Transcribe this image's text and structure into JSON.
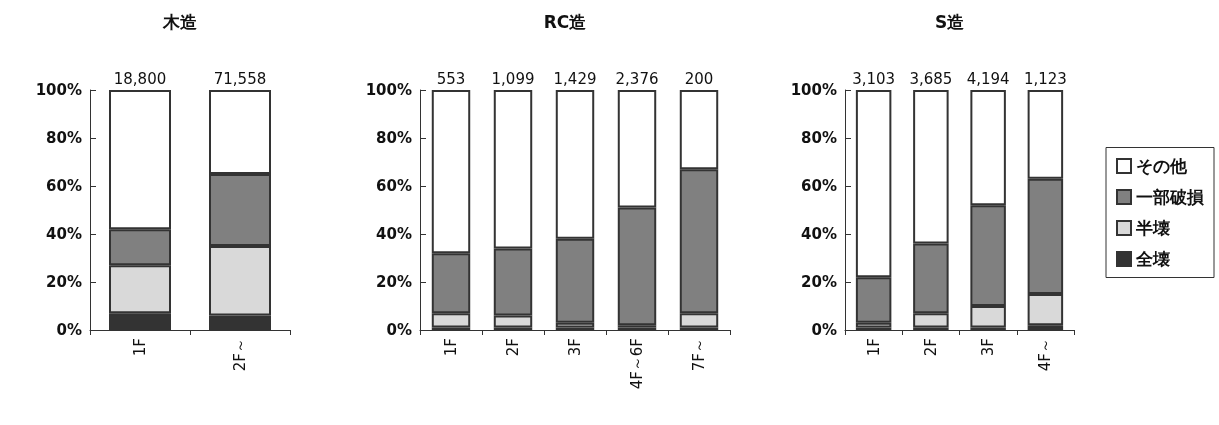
{
  "chart_data": [
    {
      "type": "bar",
      "title": "木造",
      "stacked": true,
      "categories": [
        "1F",
        "2F～"
      ],
      "ylim": [
        0,
        100
      ],
      "yticks": [
        {
          "value": 0,
          "label": "0%"
        },
        {
          "value": 20,
          "label": "20%"
        },
        {
          "value": 40,
          "label": "40%"
        },
        {
          "value": 60,
          "label": "60%"
        },
        {
          "value": 80,
          "label": "80%"
        },
        {
          "value": 100,
          "label": "100%"
        }
      ],
      "grid": false,
      "legend": false,
      "annotations": [
        {
          "text": "18,800",
          "x": "1F",
          "y": 100
        },
        {
          "text": "71,558",
          "x": "2F～",
          "y": 100
        }
      ],
      "series": [
        {
          "color": "#333333",
          "values": [
            7,
            6
          ]
        },
        {
          "color": "#d9d9d9",
          "values": [
            20,
            29
          ]
        },
        {
          "color": "#808080",
          "values": [
            15,
            30
          ]
        },
        {
          "color": "#ffffff",
          "values": [
            58,
            35
          ]
        }
      ]
    },
    {
      "type": "bar",
      "title": "RC造",
      "stacked": true,
      "categories": [
        "1F",
        "2F",
        "3F",
        "4F～6F",
        "7F～"
      ],
      "ylim": [
        0,
        100
      ],
      "yticks": [
        {
          "value": 0,
          "label": "0%"
        },
        {
          "value": 20,
          "label": "20%"
        },
        {
          "value": 40,
          "label": "40%"
        },
        {
          "value": 60,
          "label": "60%"
        },
        {
          "value": 80,
          "label": "80%"
        },
        {
          "value": 100,
          "label": "100%"
        }
      ],
      "grid": false,
      "legend": false,
      "annotations": [
        {
          "text": "553",
          "x": "1F",
          "y": 100
        },
        {
          "text": "1,099",
          "x": "2F",
          "y": 100
        },
        {
          "text": "1,429",
          "x": "3F",
          "y": 100
        },
        {
          "text": "2,376",
          "x": "4F～6F",
          "y": 100
        },
        {
          "text": "200",
          "x": "7F～",
          "y": 100
        }
      ],
      "series": [
        {
          "color": "#333333",
          "values": [
            1,
            1,
            1,
            1,
            1
          ]
        },
        {
          "color": "#d9d9d9",
          "values": [
            6,
            5,
            2,
            1,
            6
          ]
        },
        {
          "color": "#808080",
          "values": [
            25,
            28,
            35,
            49,
            60
          ]
        },
        {
          "color": "#ffffff",
          "values": [
            68,
            66,
            62,
            49,
            33
          ]
        }
      ]
    },
    {
      "type": "bar",
      "title": "S造",
      "stacked": true,
      "categories": [
        "1F",
        "2F",
        "3F",
        "4F～"
      ],
      "ylim": [
        0,
        100
      ],
      "yticks": [
        {
          "value": 0,
          "label": "0%"
        },
        {
          "value": 20,
          "label": "20%"
        },
        {
          "value": 40,
          "label": "40%"
        },
        {
          "value": 60,
          "label": "60%"
        },
        {
          "value": 80,
          "label": "80%"
        },
        {
          "value": 100,
          "label": "100%"
        }
      ],
      "grid": false,
      "legend": "right",
      "annotations": [
        {
          "text": "3,103",
          "x": "1F",
          "y": 100
        },
        {
          "text": "3,685",
          "x": "2F",
          "y": 100
        },
        {
          "text": "4,194",
          "x": "3F",
          "y": 100
        },
        {
          "text": "1,123",
          "x": "4F～",
          "y": 100
        }
      ],
      "series": [
        {
          "name": "全壊",
          "color": "#333333",
          "values": [
            1,
            1,
            1,
            2
          ]
        },
        {
          "name": "半壊",
          "color": "#d9d9d9",
          "values": [
            2,
            6,
            9,
            13
          ]
        },
        {
          "name": "一部破損",
          "color": "#808080",
          "values": [
            19,
            29,
            42,
            48
          ]
        },
        {
          "name": "その他",
          "color": "#ffffff",
          "values": [
            78,
            64,
            48,
            37
          ]
        }
      ]
    }
  ]
}
